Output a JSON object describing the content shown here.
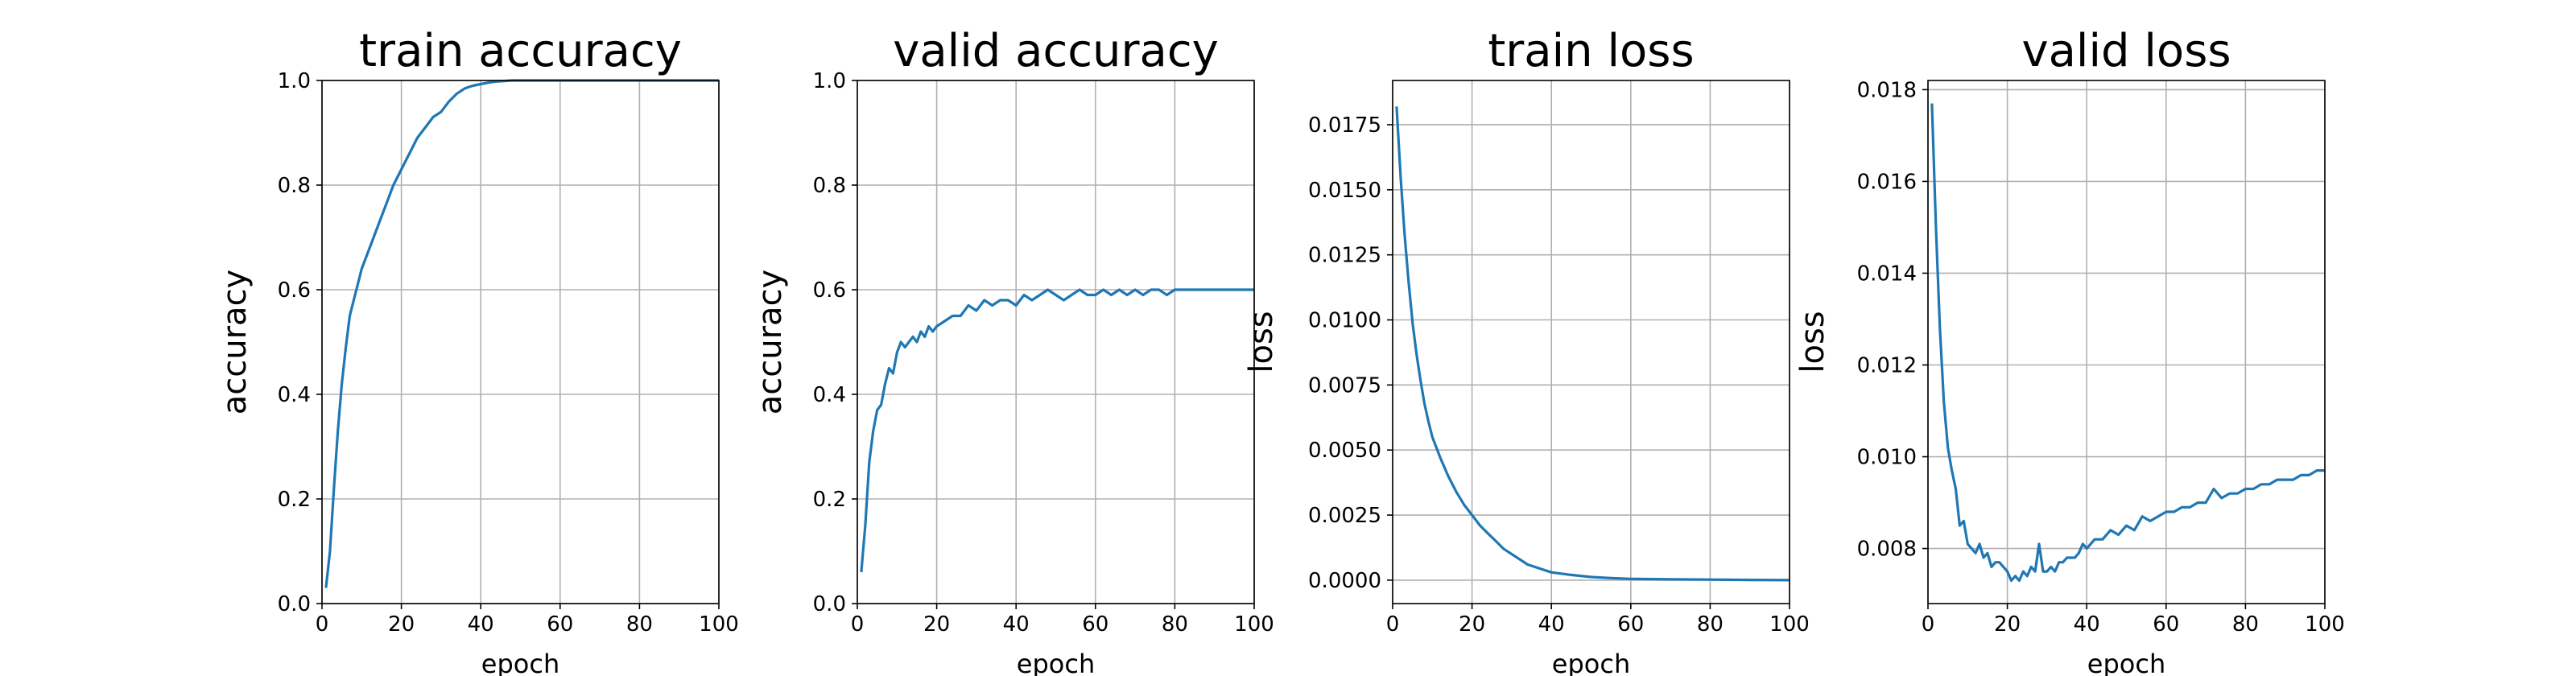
{
  "chart_data": [
    {
      "type": "line",
      "title": "train accuracy",
      "xlabel": "epoch",
      "ylabel": "accuracy",
      "xlim": [
        0,
        100
      ],
      "ylim": [
        0,
        1.0
      ],
      "xticks": [
        "0",
        "20",
        "40",
        "60",
        "80",
        "100"
      ],
      "yticks": [
        "0.0",
        "0.2",
        "0.4",
        "0.6",
        "0.8",
        "1.0"
      ],
      "grid": true,
      "color": "#1f77b4",
      "series": [
        {
          "x": [
            1,
            2,
            3,
            4,
            5,
            6,
            7,
            8,
            9,
            10,
            12,
            14,
            16,
            18,
            20,
            22,
            24,
            26,
            28,
            30,
            32,
            34,
            36,
            38,
            40,
            42,
            44,
            46,
            48,
            50,
            55,
            60,
            70,
            80,
            90,
            100
          ],
          "y": [
            0.03,
            0.1,
            0.22,
            0.33,
            0.42,
            0.49,
            0.55,
            0.58,
            0.61,
            0.64,
            0.68,
            0.72,
            0.76,
            0.8,
            0.83,
            0.86,
            0.89,
            0.91,
            0.93,
            0.94,
            0.96,
            0.975,
            0.985,
            0.99,
            0.993,
            0.996,
            0.998,
            0.999,
            1.0,
            1.0,
            1.0,
            1.0,
            1.0,
            1.0,
            1.0,
            1.0
          ]
        }
      ]
    },
    {
      "type": "line",
      "title": "valid accuracy",
      "xlabel": "epoch",
      "ylabel": "accuracy",
      "xlim": [
        0,
        100
      ],
      "ylim": [
        0,
        1.0
      ],
      "xticks": [
        "0",
        "20",
        "40",
        "60",
        "80",
        "100"
      ],
      "yticks": [
        "0.0",
        "0.2",
        "0.4",
        "0.6",
        "0.8",
        "1.0"
      ],
      "grid": true,
      "color": "#1f77b4",
      "series": [
        {
          "x": [
            1,
            2,
            3,
            4,
            5,
            6,
            7,
            8,
            9,
            10,
            11,
            12,
            13,
            14,
            15,
            16,
            17,
            18,
            19,
            20,
            22,
            24,
            26,
            28,
            30,
            32,
            34,
            36,
            38,
            40,
            42,
            44,
            46,
            48,
            50,
            52,
            54,
            56,
            58,
            60,
            62,
            64,
            66,
            68,
            70,
            72,
            74,
            76,
            78,
            80,
            82,
            84,
            86,
            88,
            90,
            92,
            94,
            96,
            98,
            100
          ],
          "y": [
            0.06,
            0.15,
            0.27,
            0.33,
            0.37,
            0.38,
            0.42,
            0.45,
            0.44,
            0.48,
            0.5,
            0.49,
            0.5,
            0.51,
            0.5,
            0.52,
            0.51,
            0.53,
            0.52,
            0.53,
            0.54,
            0.55,
            0.55,
            0.57,
            0.56,
            0.58,
            0.57,
            0.58,
            0.58,
            0.57,
            0.59,
            0.58,
            0.59,
            0.6,
            0.59,
            0.58,
            0.59,
            0.6,
            0.59,
            0.59,
            0.6,
            0.59,
            0.6,
            0.59,
            0.6,
            0.59,
            0.6,
            0.6,
            0.59,
            0.6,
            0.6,
            0.6,
            0.6,
            0.6,
            0.6,
            0.6,
            0.6,
            0.6,
            0.6,
            0.6
          ]
        }
      ]
    },
    {
      "type": "line",
      "title": "train loss",
      "xlabel": "epoch",
      "ylabel": "loss",
      "xlim": [
        0,
        100
      ],
      "ylim": [
        -0.0009,
        0.0192
      ],
      "xticks": [
        "0",
        "20",
        "40",
        "60",
        "80",
        "100"
      ],
      "yticks": [
        "0.0000",
        "0.0025",
        "0.0050",
        "0.0075",
        "0.0100",
        "0.0125",
        "0.0150",
        "0.0175"
      ],
      "grid": true,
      "color": "#1f77b4",
      "series": [
        {
          "x": [
            1,
            2,
            3,
            4,
            5,
            6,
            7,
            8,
            9,
            10,
            12,
            14,
            16,
            18,
            20,
            22,
            24,
            26,
            28,
            30,
            32,
            34,
            36,
            38,
            40,
            45,
            50,
            55,
            60,
            70,
            80,
            90,
            100
          ],
          "y": [
            0.0182,
            0.0155,
            0.0133,
            0.0115,
            0.0099,
            0.0087,
            0.0077,
            0.0068,
            0.0061,
            0.0055,
            0.0047,
            0.004,
            0.0034,
            0.0029,
            0.0025,
            0.0021,
            0.0018,
            0.0015,
            0.0012,
            0.001,
            0.0008,
            0.0006,
            0.0005,
            0.0004,
            0.0003,
            0.0002,
            0.00012,
            8e-05,
            5e-05,
            3e-05,
            2e-05,
            1e-05,
            0.0
          ]
        }
      ]
    },
    {
      "type": "line",
      "title": "valid loss",
      "xlabel": "epoch",
      "ylabel": "loss",
      "xlim": [
        0,
        100
      ],
      "ylim": [
        0.0068,
        0.0182
      ],
      "xticks": [
        "0",
        "20",
        "40",
        "60",
        "80",
        "100"
      ],
      "yticks": [
        "0.008",
        "0.010",
        "0.012",
        "0.014",
        "0.016",
        "0.018"
      ],
      "grid": true,
      "color": "#1f77b4",
      "series": [
        {
          "x": [
            1,
            2,
            3,
            4,
            5,
            6,
            7,
            8,
            9,
            10,
            11,
            12,
            13,
            14,
            15,
            16,
            17,
            18,
            19,
            20,
            21,
            22,
            23,
            24,
            25,
            26,
            27,
            28,
            29,
            30,
            31,
            32,
            33,
            34,
            35,
            36,
            37,
            38,
            39,
            40,
            42,
            44,
            46,
            48,
            50,
            52,
            54,
            56,
            58,
            60,
            62,
            64,
            66,
            68,
            70,
            72,
            74,
            76,
            78,
            80,
            82,
            84,
            86,
            88,
            90,
            92,
            94,
            96,
            98,
            100
          ],
          "y": [
            0.0177,
            0.015,
            0.0128,
            0.0112,
            0.0102,
            0.0097,
            0.0093,
            0.0085,
            0.0086,
            0.0081,
            0.008,
            0.0079,
            0.0081,
            0.0078,
            0.0079,
            0.0076,
            0.0077,
            0.0077,
            0.0076,
            0.0075,
            0.0073,
            0.0074,
            0.0073,
            0.0075,
            0.0074,
            0.0076,
            0.0075,
            0.0081,
            0.0075,
            0.0075,
            0.0076,
            0.0075,
            0.0077,
            0.0077,
            0.0078,
            0.0078,
            0.0078,
            0.0079,
            0.0081,
            0.008,
            0.0082,
            0.0082,
            0.0084,
            0.0083,
            0.0085,
            0.0084,
            0.0087,
            0.0086,
            0.0087,
            0.0088,
            0.0088,
            0.0089,
            0.0089,
            0.009,
            0.009,
            0.0093,
            0.0091,
            0.0092,
            0.0092,
            0.0093,
            0.0093,
            0.0094,
            0.0094,
            0.0095,
            0.0095,
            0.0095,
            0.0096,
            0.0096,
            0.0097,
            0.0097
          ]
        }
      ]
    }
  ]
}
